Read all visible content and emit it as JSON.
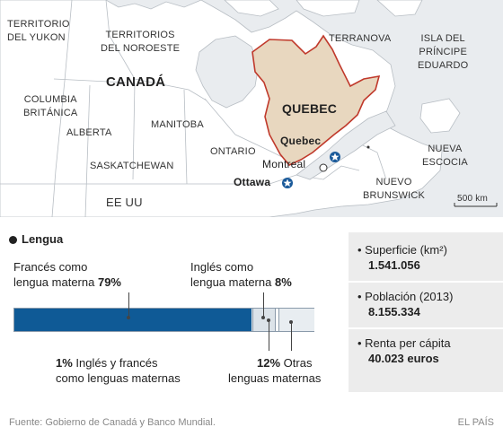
{
  "map": {
    "labels": {
      "yukon": "TERRITORIO\nDEL YUKON",
      "noroeste": "TERRITORIOS\nDEL NOROESTE",
      "canada": "CANADÁ",
      "columbia": "COLUMBIA\nBRITÁNICA",
      "alberta": "ALBERTA",
      "saskatchewan": "SASKATCHEWAN",
      "manitoba": "MANITOBA",
      "ontario": "ONTARIO",
      "quebec_region": "QUEBEC",
      "terranova": "TERRANOVA",
      "principe": "ISLA DEL\nPRÍNCIPE\nEDUARDO",
      "nueva_escocia": "NUEVA\nESCOCIA",
      "nuevo_brunswick": "NUEVO\nBRUNSWICK",
      "eeuu": "EE UU",
      "quebec_city": "Quebec",
      "montreal": "Montreal",
      "ottawa": "Ottawa",
      "scale": "500 km"
    },
    "colors": {
      "land": "#ffffff",
      "water": "#e9ecef",
      "highlight": "#e8d7bf",
      "highlight_border": "#c0392b"
    }
  },
  "section_title": "Lengua",
  "language": {
    "french": {
      "text": "Francés como\nlengua materna",
      "pct": "79%",
      "value": 79
    },
    "english": {
      "text": "Inglés como\nlengua materna",
      "pct": "8%",
      "value": 8
    },
    "both": {
      "pct": "1%",
      "text1": "Inglés y francés",
      "text2": "como lenguas maternas",
      "value": 1
    },
    "other": {
      "pct": "12%",
      "text1": "Otras",
      "text2": "lenguas maternas",
      "value": 12
    },
    "colors": {
      "french": "#0f5a96",
      "english": "#dce3e9",
      "other": "#e8edf1"
    }
  },
  "stats": [
    {
      "label": "• Superficie (km²)",
      "value": "1.541.056"
    },
    {
      "label": "• Población (2013)",
      "value": "8.155.334"
    },
    {
      "label": "• Renta per cápita",
      "value": "40.023 euros"
    }
  ],
  "footer": {
    "source": "Fuente: Gobierno de Canadá y Banco Mundial.",
    "brand": "EL PAÍS"
  }
}
